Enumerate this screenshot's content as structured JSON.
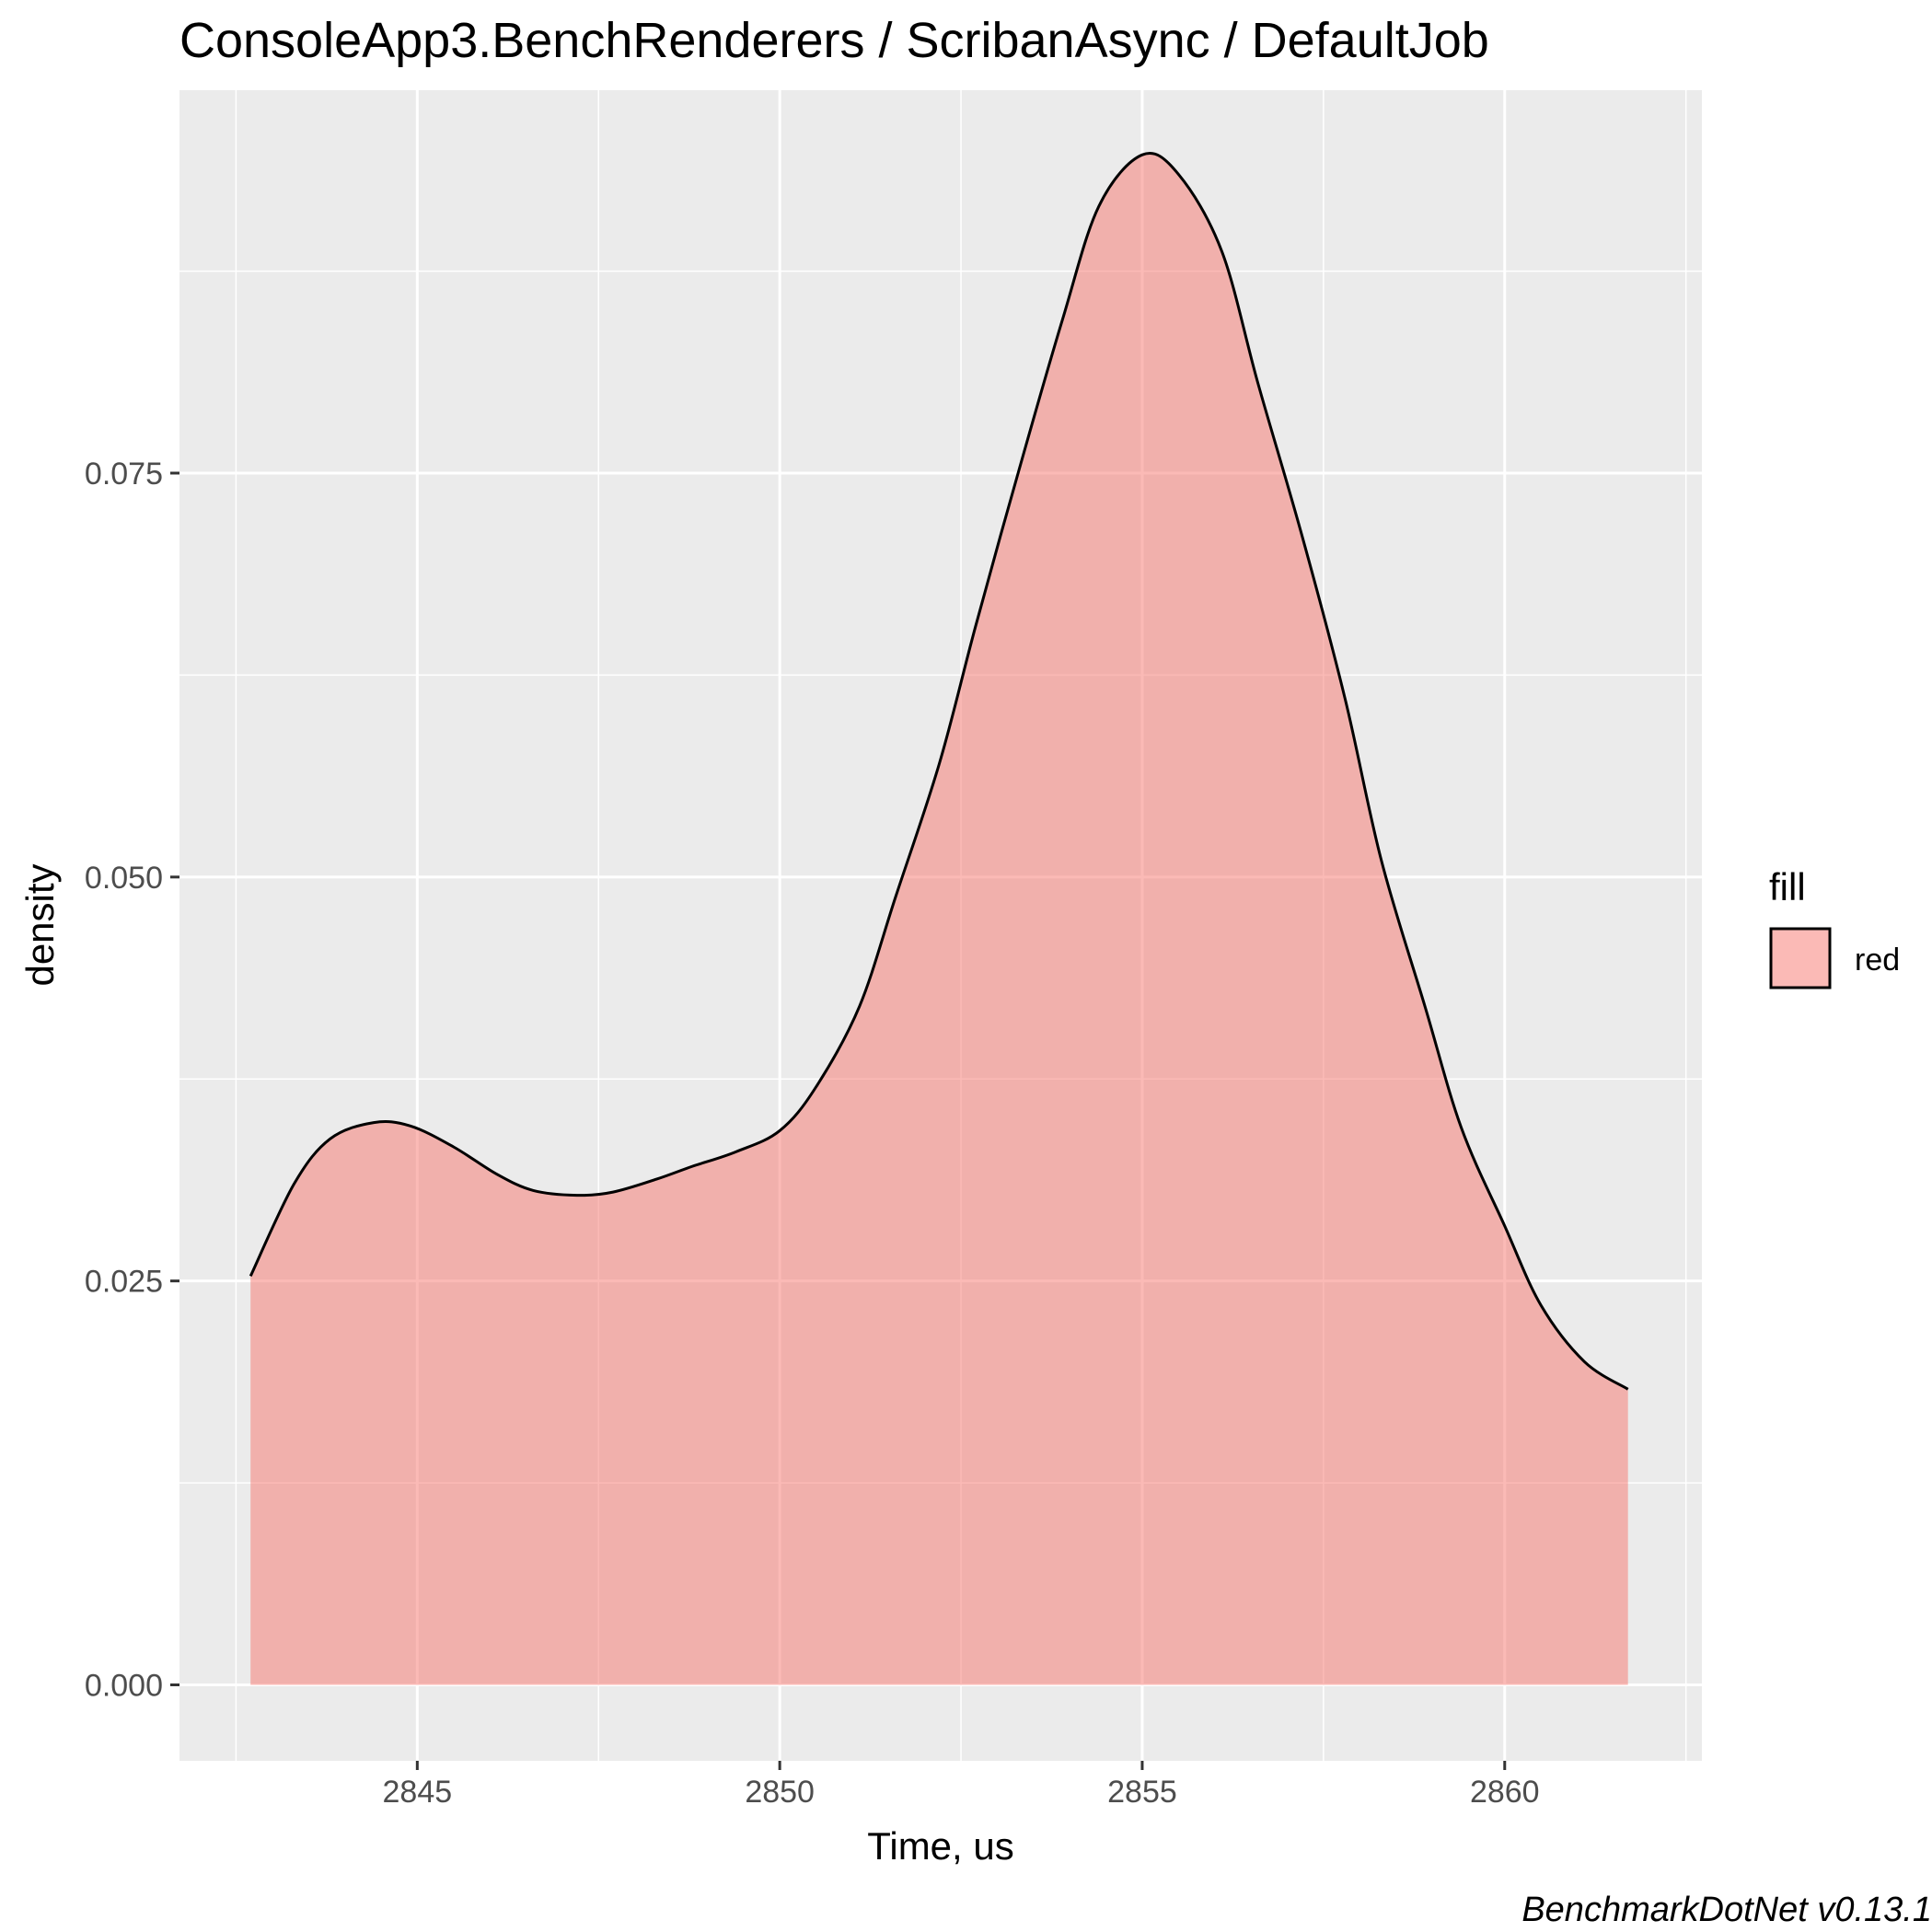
{
  "chart_data": {
    "type": "area",
    "title": "ConsoleApp3.BenchRenderers / ScribanAsync / DefaultJob",
    "xlabel": "Time, us",
    "ylabel": "density",
    "xlim": [
      2841.72,
      2862.72
    ],
    "ylim": [
      -0.0047,
      0.0987
    ],
    "x_ticks": [
      2845,
      2850,
      2855,
      2860
    ],
    "x_tick_labels": [
      "2845",
      "2850",
      "2855",
      "2860"
    ],
    "y_ticks": [
      0,
      0.025,
      0.05,
      0.075
    ],
    "y_tick_labels": [
      "0.000",
      "0.025",
      "0.050",
      "0.075"
    ],
    "grid": true,
    "legend": {
      "title": "fill",
      "position": "right",
      "entries": [
        "red"
      ]
    },
    "series": [
      {
        "name": "red",
        "color": "#f8766d",
        "fill_opacity": 0.5,
        "line_color": "#000000",
        "x": [
          2842.7,
          2843.3,
          2843.8,
          2844.4,
          2844.9,
          2845.5,
          2846.1,
          2846.6,
          2847.2,
          2847.7,
          2848.3,
          2848.8,
          2849.4,
          2850.0,
          2850.5,
          2851.1,
          2851.6,
          2852.2,
          2852.7,
          2853.3,
          2853.9,
          2854.4,
          2855.0,
          2855.5,
          2856.1,
          2856.6,
          2857.2,
          2857.8,
          2858.3,
          2858.9,
          2859.4,
          2860.0,
          2860.5,
          2861.1,
          2861.7
        ],
        "y": [
          0.0253,
          0.031,
          0.0338,
          0.0348,
          0.0346,
          0.0333,
          0.0316,
          0.0306,
          0.0303,
          0.0305,
          0.0313,
          0.0321,
          0.033,
          0.0343,
          0.037,
          0.042,
          0.0488,
          0.057,
          0.0655,
          0.0752,
          0.0845,
          0.0915,
          0.0947,
          0.0935,
          0.0887,
          0.0805,
          0.0712,
          0.061,
          0.051,
          0.042,
          0.0345,
          0.0284,
          0.0235,
          0.02,
          0.0183
        ]
      }
    ]
  },
  "caption": "BenchmarkDotNet v0.13.1"
}
